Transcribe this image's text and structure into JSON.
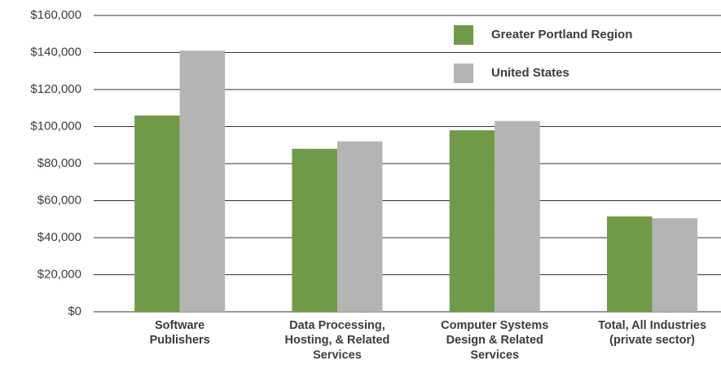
{
  "chart_data": {
    "type": "bar",
    "categories": [
      "Software\nPublishers",
      "Data Processing,\nHosting, & Related\nServices",
      "Computer Systems\nDesign & Related\nServices",
      "Total, All Industries\n(private sector)"
    ],
    "series": [
      {
        "name": "Greater Portland Region",
        "color": "#709a48",
        "values": [
          106000,
          88000,
          98000,
          51500
        ]
      },
      {
        "name": "United States",
        "color": "#b4b4b4",
        "values": [
          141000,
          92000,
          103000,
          50500
        ]
      }
    ],
    "ylim": [
      0,
      160000
    ],
    "yticks": [
      {
        "value": 0,
        "label": "$0"
      },
      {
        "value": 20000,
        "label": "$20,000"
      },
      {
        "value": 40000,
        "label": "$40,000"
      },
      {
        "value": 60000,
        "label": "$60,000"
      },
      {
        "value": 80000,
        "label": "$80,000"
      },
      {
        "value": 100000,
        "label": "$100,000"
      },
      {
        "value": 120000,
        "label": "$120,000"
      },
      {
        "value": 140000,
        "label": "$140,000"
      },
      {
        "value": 160000,
        "label": "$160,000"
      }
    ],
    "grid": true,
    "legend": "top-right"
  }
}
